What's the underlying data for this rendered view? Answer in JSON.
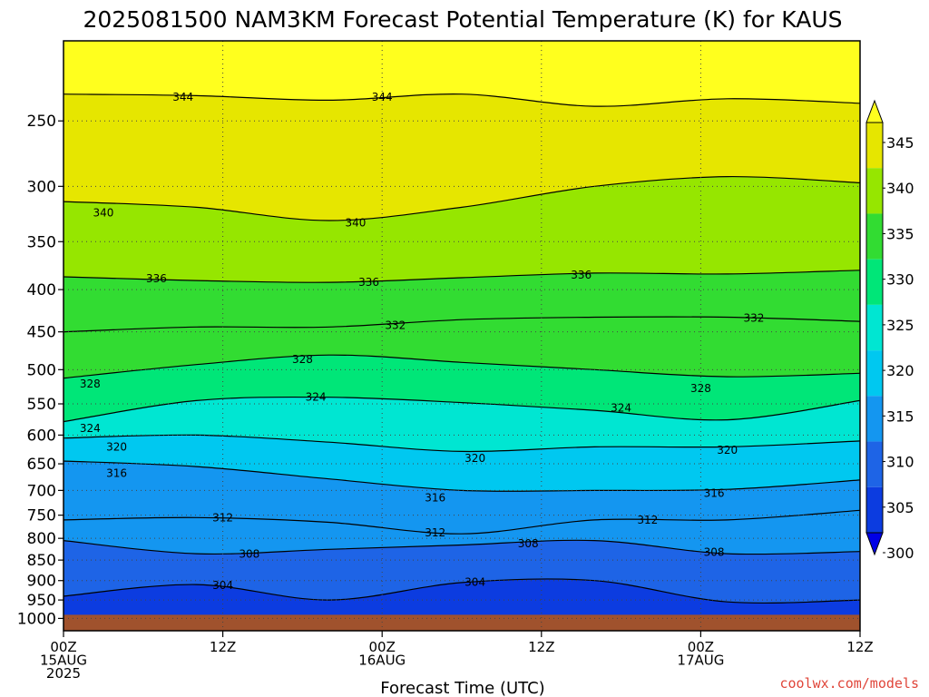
{
  "header": {
    "title": "2025081500 NAM3KM Forecast Potential Temperature (K) for KAUS"
  },
  "footer": {
    "xlabel": "Forecast Time (UTC)",
    "credit": "coolwx.com/models"
  },
  "colors": {
    "ground": "#a0522d",
    "grid": "#444444",
    "contour": "#000000"
  },
  "chart_data": {
    "type": "heatmap",
    "title": "2025081500 NAM3KM Forecast Potential Temperature (K) for KAUS",
    "xlabel": "Forecast Time (UTC)",
    "ylabel": "",
    "x_range_hours": [
      0,
      60
    ],
    "x_ticks": [
      {
        "hour": 0,
        "lines": [
          "00Z",
          "15AUG",
          "2025"
        ]
      },
      {
        "hour": 12,
        "lines": [
          "12Z"
        ]
      },
      {
        "hour": 24,
        "lines": [
          "00Z",
          "16AUG"
        ]
      },
      {
        "hour": 36,
        "lines": [
          "12Z"
        ]
      },
      {
        "hour": 48,
        "lines": [
          "00Z",
          "17AUG"
        ]
      },
      {
        "hour": 60,
        "lines": [
          "12Z"
        ]
      }
    ],
    "y_scale": "log",
    "y_reversed": true,
    "y_range_hPa": [
      1035,
      200
    ],
    "y_ticks": [
      250,
      300,
      350,
      400,
      450,
      500,
      550,
      600,
      650,
      700,
      750,
      800,
      850,
      900,
      950,
      1000
    ],
    "surface_pressure_hPa": 990,
    "grid": true,
    "colorbar": {
      "levels": [
        300,
        305,
        310,
        315,
        320,
        325,
        330,
        335,
        340,
        345
      ],
      "colors": [
        "#0000e6",
        "#0c3ce0",
        "#1e64e6",
        "#1496f0",
        "#00c8f0",
        "#00e6d2",
        "#00e678",
        "#32dc32",
        "#96e600",
        "#e6e600",
        "#ffff1e"
      ],
      "extend": "both"
    },
    "contour_interval_K": 4,
    "contours": [
      {
        "level": 344,
        "pressure": [
          232,
          233,
          236,
          232,
          240,
          235,
          238
        ]
      },
      {
        "level": 340,
        "pressure": [
          313,
          318,
          330,
          318,
          300,
          292,
          297
        ]
      },
      {
        "level": 336,
        "pressure": [
          386,
          390,
          392,
          387,
          382,
          383,
          379
        ]
      },
      {
        "level": 332,
        "pressure": [
          450,
          444,
          444,
          435,
          432,
          432,
          437
        ]
      },
      {
        "level": 328,
        "pressure": [
          512,
          493,
          480,
          490,
          500,
          510,
          505
        ]
      },
      {
        "level": 324,
        "pressure": [
          578,
          545,
          540,
          548,
          560,
          575,
          545
        ]
      },
      {
        "level": 320,
        "pressure": [
          605,
          600,
          612,
          628,
          620,
          620,
          610
        ]
      },
      {
        "level": 316,
        "pressure": [
          645,
          655,
          678,
          700,
          700,
          698,
          680
        ]
      },
      {
        "level": 312,
        "pressure": [
          760,
          755,
          765,
          790,
          760,
          760,
          740
        ]
      },
      {
        "level": 308,
        "pressure": [
          805,
          835,
          825,
          815,
          805,
          835,
          830
        ]
      },
      {
        "level": 304,
        "pressure": [
          940,
          910,
          950,
          905,
          900,
          955,
          950
        ]
      }
    ],
    "contour_labels": [
      {
        "text": "344",
        "hour": 9,
        "pressure": 234
      },
      {
        "text": "344",
        "hour": 24,
        "pressure": 234
      },
      {
        "text": "340",
        "hour": 3,
        "pressure": 323
      },
      {
        "text": "340",
        "hour": 22,
        "pressure": 332
      },
      {
        "text": "336",
        "hour": 7,
        "pressure": 388
      },
      {
        "text": "336",
        "hour": 23,
        "pressure": 392
      },
      {
        "text": "336",
        "hour": 39,
        "pressure": 384
      },
      {
        "text": "332",
        "hour": 25,
        "pressure": 442
      },
      {
        "text": "332",
        "hour": 52,
        "pressure": 433
      },
      {
        "text": "328",
        "hour": 2,
        "pressure": 520
      },
      {
        "text": "328",
        "hour": 18,
        "pressure": 486
      },
      {
        "text": "328",
        "hour": 48,
        "pressure": 527
      },
      {
        "text": "324",
        "hour": 2,
        "pressure": 589
      },
      {
        "text": "324",
        "hour": 19,
        "pressure": 540
      },
      {
        "text": "324",
        "hour": 42,
        "pressure": 556
      },
      {
        "text": "320",
        "hour": 4,
        "pressure": 620
      },
      {
        "text": "320",
        "hour": 31,
        "pressure": 640
      },
      {
        "text": "320",
        "hour": 50,
        "pressure": 626
      },
      {
        "text": "316",
        "hour": 4,
        "pressure": 667
      },
      {
        "text": "316",
        "hour": 28,
        "pressure": 715
      },
      {
        "text": "316",
        "hour": 49,
        "pressure": 706
      },
      {
        "text": "312",
        "hour": 12,
        "pressure": 755
      },
      {
        "text": "312",
        "hour": 28,
        "pressure": 788
      },
      {
        "text": "312",
        "hour": 44,
        "pressure": 760
      },
      {
        "text": "308",
        "hour": 14,
        "pressure": 836
      },
      {
        "text": "308",
        "hour": 35,
        "pressure": 812
      },
      {
        "text": "308",
        "hour": 49,
        "pressure": 832
      },
      {
        "text": "304",
        "hour": 12,
        "pressure": 912
      },
      {
        "text": "304",
        "hour": 31,
        "pressure": 904
      }
    ]
  }
}
